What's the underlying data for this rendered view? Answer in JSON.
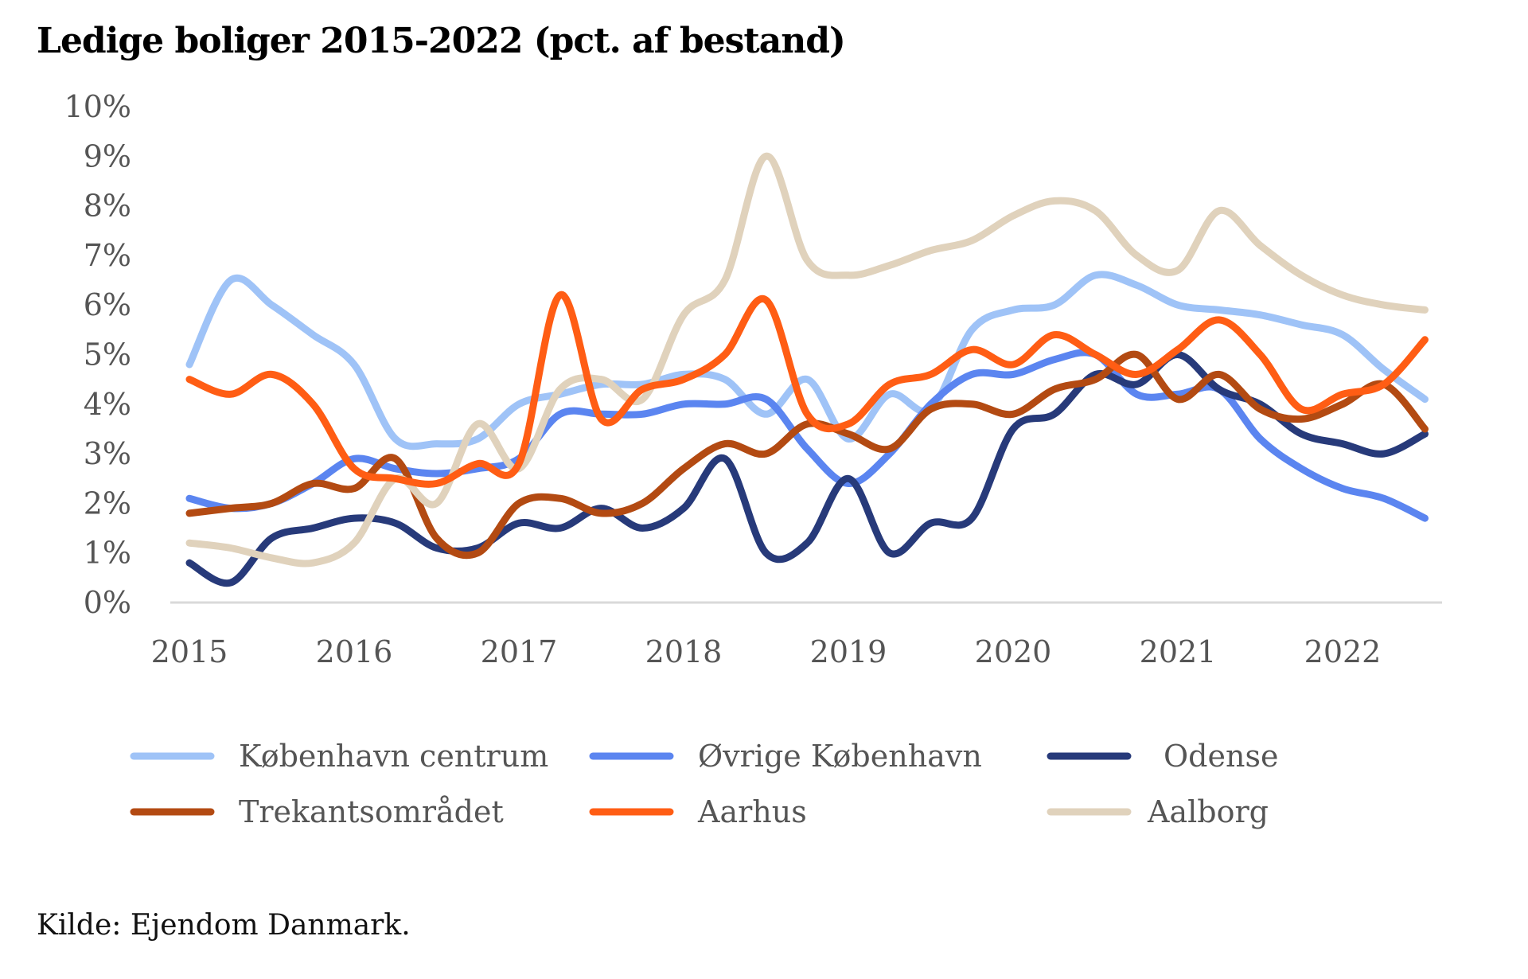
{
  "source_label": "Kilde: Ejendom Danmark.",
  "chart_data": {
    "type": "line",
    "title": "Ledige boliger 2015-2022 (pct. af bestand)",
    "xlabel": "",
    "ylabel": "",
    "xlim": [
      2015,
      2022.5
    ],
    "ylim": [
      0,
      10
    ],
    "y_ticks": [
      0,
      1,
      2,
      3,
      4,
      5,
      6,
      7,
      8,
      9,
      10
    ],
    "y_tick_labels": [
      "0%",
      "1%",
      "2%",
      "3%",
      "4%",
      "5%",
      "6%",
      "7%",
      "8%",
      "9%",
      "10%"
    ],
    "x_ticks": [
      2015,
      2016,
      2017,
      2018,
      2019,
      2020,
      2021,
      2022
    ],
    "x_tick_labels": [
      "2015",
      "2016",
      "2017",
      "2018",
      "2019",
      "2020",
      "2021",
      "2022"
    ],
    "grid": false,
    "legend_position": "bottom",
    "x": [
      2015.0,
      2015.25,
      2015.5,
      2015.75,
      2016.0,
      2016.25,
      2016.5,
      2016.75,
      2017.0,
      2017.25,
      2017.5,
      2017.75,
      2018.0,
      2018.25,
      2018.5,
      2018.75,
      2019.0,
      2019.25,
      2019.5,
      2019.75,
      2020.0,
      2020.25,
      2020.5,
      2020.75,
      2021.0,
      2021.25,
      2021.5,
      2021.75,
      2022.0,
      2022.25,
      2022.5
    ],
    "series": [
      {
        "name": "København centrum",
        "color": "#9fc3f7",
        "values": [
          4.8,
          6.5,
          6.0,
          5.4,
          4.8,
          3.3,
          3.2,
          3.3,
          4.0,
          4.2,
          4.4,
          4.4,
          4.6,
          4.5,
          3.8,
          4.5,
          3.3,
          4.2,
          3.9,
          5.5,
          5.9,
          6.0,
          6.6,
          6.4,
          6.0,
          5.9,
          5.8,
          5.6,
          5.4,
          4.7,
          4.1
        ]
      },
      {
        "name": "Øvrige København",
        "color": "#5b85f0",
        "values": [
          2.1,
          1.9,
          2.0,
          2.4,
          2.9,
          2.7,
          2.6,
          2.7,
          2.9,
          3.8,
          3.8,
          3.8,
          4.0,
          4.0,
          4.1,
          3.1,
          2.4,
          3.0,
          4.0,
          4.6,
          4.6,
          4.9,
          5.0,
          4.2,
          4.2,
          4.3,
          3.3,
          2.7,
          2.3,
          2.1,
          1.7
        ]
      },
      {
        "name": "Odense",
        "color": "#273a7a",
        "values": [
          0.8,
          0.4,
          1.3,
          1.5,
          1.7,
          1.6,
          1.1,
          1.1,
          1.6,
          1.5,
          1.9,
          1.5,
          1.9,
          2.9,
          1.0,
          1.2,
          2.5,
          1.0,
          1.6,
          1.7,
          3.5,
          3.8,
          4.6,
          4.4,
          5.0,
          4.3,
          4.0,
          3.4,
          3.2,
          3.0,
          3.4
        ]
      },
      {
        "name": "Trekantsområdet",
        "color": "#b34a12",
        "values": [
          1.8,
          1.9,
          2.0,
          2.4,
          2.3,
          2.9,
          1.3,
          1.0,
          2.0,
          2.1,
          1.8,
          2.0,
          2.7,
          3.2,
          3.0,
          3.6,
          3.4,
          3.1,
          3.9,
          4.0,
          3.8,
          4.3,
          4.5,
          5.0,
          4.1,
          4.6,
          3.9,
          3.7,
          4.0,
          4.4,
          3.5
        ]
      },
      {
        "name": "Aarhus",
        "color": "#ff5d14",
        "values": [
          4.5,
          4.2,
          4.6,
          4.0,
          2.7,
          2.5,
          2.4,
          2.8,
          2.8,
          6.2,
          3.7,
          4.3,
          4.5,
          5.0,
          6.1,
          3.8,
          3.6,
          4.4,
          4.6,
          5.1,
          4.8,
          5.4,
          5.0,
          4.6,
          5.1,
          5.7,
          5.0,
          3.9,
          4.2,
          4.4,
          5.3
        ]
      },
      {
        "name": "Aalborg",
        "color": "#e0d2bc",
        "values": [
          1.2,
          1.1,
          0.9,
          0.8,
          1.2,
          2.5,
          2.0,
          3.6,
          2.7,
          4.3,
          4.5,
          4.1,
          5.8,
          6.5,
          9.0,
          6.9,
          6.6,
          6.8,
          7.1,
          7.3,
          7.8,
          8.1,
          7.9,
          7.0,
          6.7,
          7.9,
          7.2,
          6.6,
          6.2,
          6.0,
          5.9
        ]
      }
    ]
  }
}
